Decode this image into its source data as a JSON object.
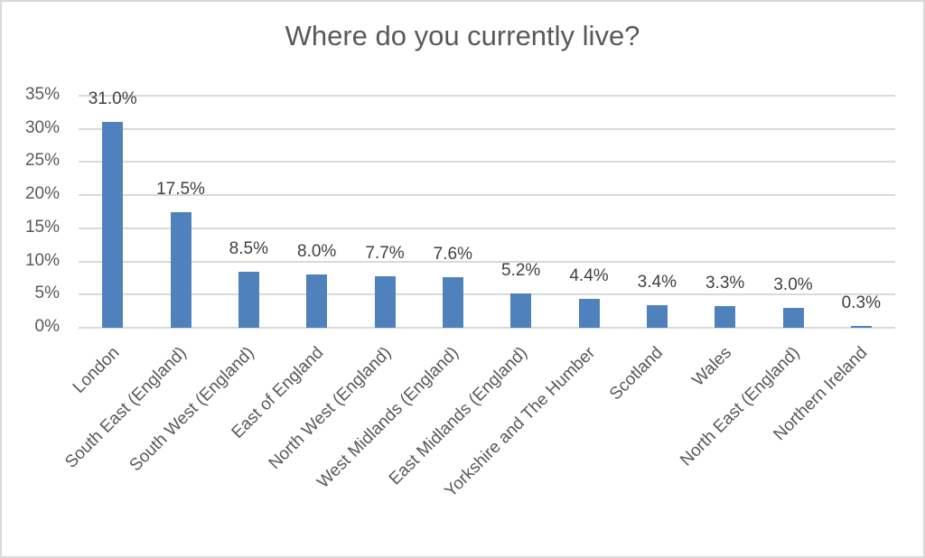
{
  "chart_data": {
    "type": "bar",
    "title": "Where do you currently live?",
    "xlabel": "",
    "ylabel": "",
    "ylim": [
      0,
      35
    ],
    "yticks": [
      "0%",
      "5%",
      "10%",
      "15%",
      "20%",
      "25%",
      "30%",
      "35%"
    ],
    "grid": true,
    "legend": null,
    "bar_color": "#4f81bd",
    "categories": [
      "London",
      "South East (England)",
      "South West (England)",
      "East of England",
      "North West (England)",
      "West Midlands (England)",
      "East Midlands (England)",
      "Yorkshire and The Humber",
      "Scotland",
      "Wales",
      "North East (England)",
      "Northern Ireland"
    ],
    "values": [
      31.0,
      17.5,
      8.5,
      8.0,
      7.7,
      7.6,
      5.2,
      4.4,
      3.4,
      3.3,
      3.0,
      0.3
    ],
    "data_labels": [
      "31.0%",
      "17.5%",
      "8.5%",
      "8.0%",
      "7.7%",
      "7.6%",
      "5.2%",
      "4.4%",
      "3.4%",
      "3.3%",
      "3.0%",
      "0.3%"
    ]
  }
}
